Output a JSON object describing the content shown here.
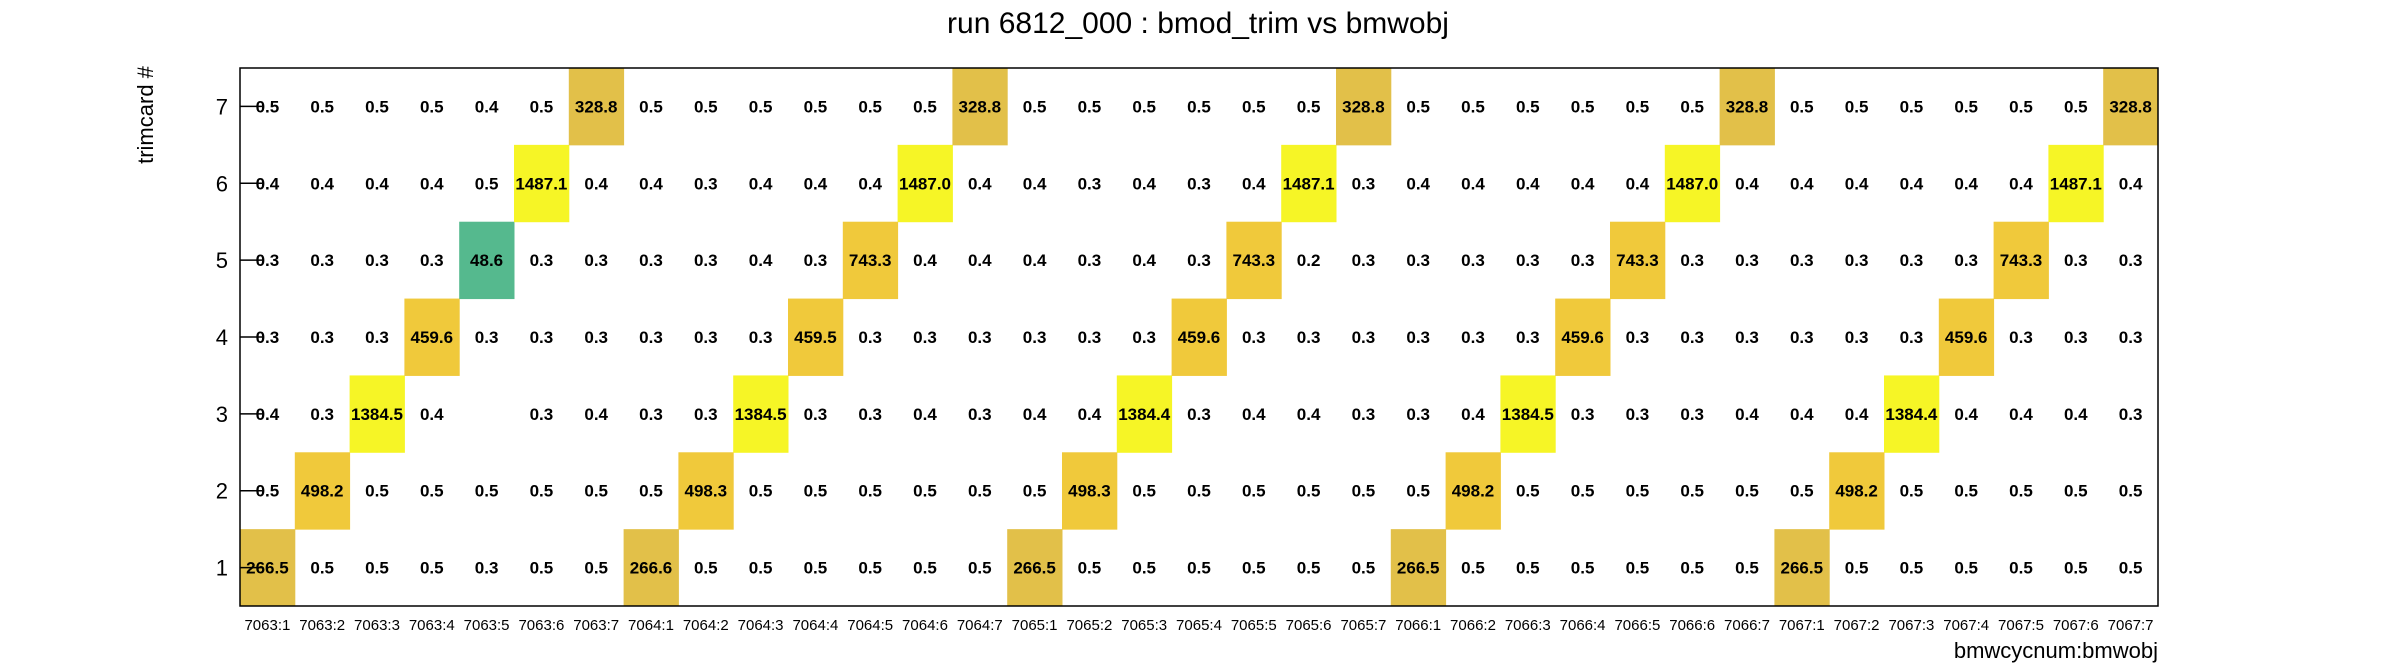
{
  "chart_data": {
    "type": "heatmap",
    "title": "run 6812_000 : bmod_trim vs bmwobj",
    "xlabel": "bmwcycnum:bmwobj",
    "ylabel": "trimcard #",
    "x_categories": [
      "7063:1",
      "7063:2",
      "7063:3",
      "7063:4",
      "7063:5",
      "7063:6",
      "7063:7",
      "7064:1",
      "7064:2",
      "7064:3",
      "7064:4",
      "7064:5",
      "7064:6",
      "7064:7",
      "7065:1",
      "7065:2",
      "7065:3",
      "7065:4",
      "7065:5",
      "7065:6",
      "7065:7",
      "7066:1",
      "7066:2",
      "7066:3",
      "7066:4",
      "7066:5",
      "7066:6",
      "7066:7",
      "7067:1",
      "7067:2",
      "7067:3",
      "7067:4",
      "7067:5",
      "7067:6",
      "7067:7"
    ],
    "y_categories": [
      "1",
      "2",
      "3",
      "4",
      "5",
      "6",
      "7"
    ],
    "values": {
      "7": [
        "0.5",
        "0.5",
        "0.5",
        "0.5",
        "0.4",
        "0.5",
        "328.8",
        "0.5",
        "0.5",
        "0.5",
        "0.5",
        "0.5",
        "0.5",
        "328.8",
        "0.5",
        "0.5",
        "0.5",
        "0.5",
        "0.5",
        "0.5",
        "328.8",
        "0.5",
        "0.5",
        "0.5",
        "0.5",
        "0.5",
        "0.5",
        "328.8",
        "0.5",
        "0.5",
        "0.5",
        "0.5",
        "0.5",
        "0.5",
        "328.8"
      ],
      "6": [
        "0.4",
        "0.4",
        "0.4",
        "0.4",
        "0.5",
        "1487.1",
        "0.4",
        "0.4",
        "0.3",
        "0.4",
        "0.4",
        "0.4",
        "1487.0",
        "0.4",
        "0.4",
        "0.3",
        "0.4",
        "0.3",
        "0.4",
        "1487.1",
        "0.3",
        "0.4",
        "0.4",
        "0.4",
        "0.4",
        "0.4",
        "1487.0",
        "0.4",
        "0.4",
        "0.4",
        "0.4",
        "0.4",
        "0.4",
        "1487.1",
        "0.4"
      ],
      "5": [
        "0.3",
        "0.3",
        "0.3",
        "0.3",
        "48.6",
        "0.3",
        "0.3",
        "0.3",
        "0.3",
        "0.4",
        "0.3",
        "743.3",
        "0.4",
        "0.4",
        "0.4",
        "0.3",
        "0.4",
        "0.3",
        "743.3",
        "0.2",
        "0.3",
        "0.3",
        "0.3",
        "0.3",
        "0.3",
        "743.3",
        "0.3",
        "0.3",
        "0.3",
        "0.3",
        "0.3",
        "0.3",
        "743.3",
        "0.3",
        "0.3"
      ],
      "4": [
        "0.3",
        "0.3",
        "0.3",
        "459.6",
        "0.3",
        "0.3",
        "0.3",
        "0.3",
        "0.3",
        "0.3",
        "459.5",
        "0.3",
        "0.3",
        "0.3",
        "0.3",
        "0.3",
        "0.3",
        "459.6",
        "0.3",
        "0.3",
        "0.3",
        "0.3",
        "0.3",
        "0.3",
        "459.6",
        "0.3",
        "0.3",
        "0.3",
        "0.3",
        "0.3",
        "0.3",
        "459.6",
        "0.3",
        "0.3",
        "0.3"
      ],
      "3": [
        "0.4",
        "0.3",
        "1384.5",
        "0.4",
        "",
        "0.3",
        "0.4",
        "0.3",
        "0.3",
        "1384.5",
        "0.3",
        "0.3",
        "0.4",
        "0.3",
        "0.4",
        "0.4",
        "1384.4",
        "0.3",
        "0.4",
        "0.4",
        "0.3",
        "0.3",
        "0.4",
        "1384.5",
        "0.3",
        "0.3",
        "0.3",
        "0.4",
        "0.4",
        "0.4",
        "1384.4",
        "0.4",
        "0.4",
        "0.4",
        "0.3"
      ],
      "2": [
        "0.5",
        "498.2",
        "0.5",
        "0.5",
        "0.5",
        "0.5",
        "0.5",
        "0.5",
        "498.3",
        "0.5",
        "0.5",
        "0.5",
        "0.5",
        "0.5",
        "0.5",
        "498.3",
        "0.5",
        "0.5",
        "0.5",
        "0.5",
        "0.5",
        "0.5",
        "498.2",
        "0.5",
        "0.5",
        "0.5",
        "0.5",
        "0.5",
        "0.5",
        "498.2",
        "0.5",
        "0.5",
        "0.5",
        "0.5",
        "0.5"
      ],
      "1": [
        "266.5",
        "0.5",
        "0.5",
        "0.5",
        "0.3",
        "0.5",
        "0.5",
        "266.6",
        "0.5",
        "0.5",
        "0.5",
        "0.5",
        "0.5",
        "0.5",
        "266.5",
        "0.5",
        "0.5",
        "0.5",
        "0.5",
        "0.5",
        "0.5",
        "266.5",
        "0.5",
        "0.5",
        "0.5",
        "0.5",
        "0.5",
        "0.5",
        "266.5",
        "0.5",
        "0.5",
        "0.5",
        "0.5",
        "0.5",
        "0.5"
      ]
    },
    "colors": {
      "very_high": "#f6f526",
      "high": "#f0c93b",
      "mid": "#e2c049",
      "low": "#55b98e"
    },
    "grid": false,
    "legend": "none"
  }
}
